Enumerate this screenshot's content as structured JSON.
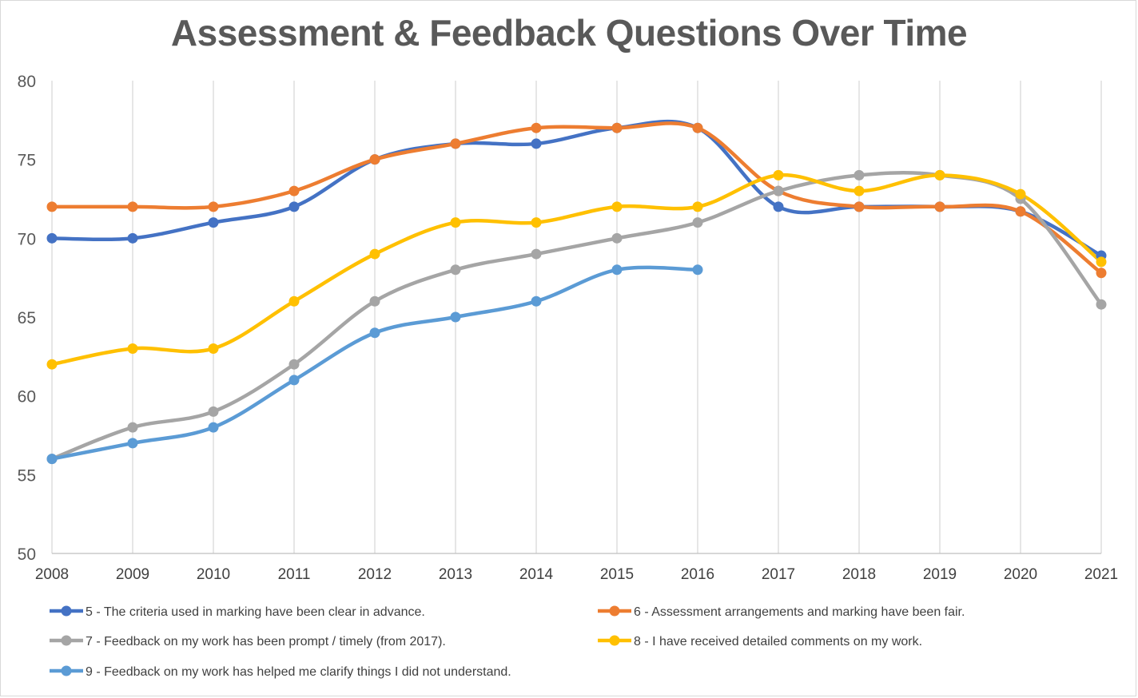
{
  "chart_data": {
    "type": "line",
    "title": "Assessment & Feedback Questions Over Time",
    "xlabel": "",
    "ylabel": "",
    "x": [
      "2008",
      "2009",
      "2010",
      "2011",
      "2012",
      "2013",
      "2014",
      "2015",
      "2016",
      "2017",
      "2018",
      "2019",
      "2020",
      "2021"
    ],
    "ylim": [
      50,
      80
    ],
    "yticks": [
      50,
      55,
      60,
      65,
      70,
      75,
      80
    ],
    "grid": "vertical",
    "legend_position": "bottom",
    "series": [
      {
        "name": "5 - The criteria used in marking have been clear in advance.",
        "color": "#4472c4",
        "values": [
          70,
          70,
          71,
          72,
          75,
          76,
          76,
          77,
          77,
          72,
          72,
          72,
          71.7,
          68.9
        ]
      },
      {
        "name": "6 - Assessment arrangements and marking have been fair.",
        "color": "#ed7d31",
        "values": [
          72,
          72,
          72,
          73,
          75,
          76,
          77,
          77,
          77,
          73,
          72,
          72,
          71.7,
          67.8
        ]
      },
      {
        "name": "7 - Feedback on my work has been prompt / timely (from 2017).",
        "color": "#a5a5a5",
        "values": [
          56,
          58,
          59,
          62,
          66,
          68,
          69,
          70,
          71,
          73,
          74,
          74,
          72.5,
          65.8
        ]
      },
      {
        "name": "8 - I have received detailed comments on my work.",
        "color": "#ffc000",
        "values": [
          62,
          63,
          63,
          66,
          69,
          71,
          71,
          72,
          72,
          74,
          73,
          74,
          72.8,
          68.5
        ]
      },
      {
        "name": "9 - Feedback on my work has helped me clarify things I did not understand.",
        "color": "#5b9bd5",
        "values": [
          56,
          57,
          58,
          61,
          64,
          65,
          66,
          68,
          68,
          null,
          null,
          null,
          null,
          null
        ]
      }
    ]
  }
}
